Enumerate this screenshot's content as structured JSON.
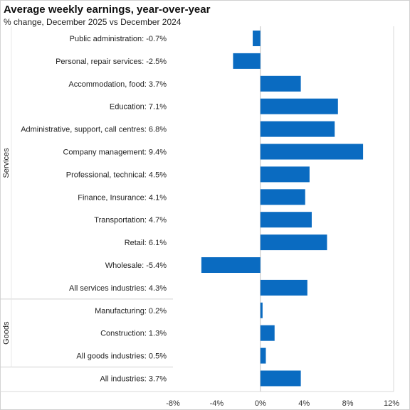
{
  "chart_data": {
    "type": "bar",
    "orientation": "horizontal",
    "title": "Average weekly earnings, year-over-year",
    "subtitle": "% change, December  2025 vs December  2024",
    "categories": [
      "Public administration:",
      "Personal, repair services:",
      "Accommodation, food:",
      "Education:",
      "Administrative, support, call centres:",
      "Company management:",
      "Professional, technical:",
      "Finance, Insurance:",
      "Transportation:",
      "Retail:",
      "Wholesale:",
      "All services industries:",
      "Manufacturing:",
      "Construction:",
      "All goods industries:",
      "All industries:"
    ],
    "values": [
      -0.7,
      -2.5,
      3.7,
      7.1,
      6.8,
      9.4,
      4.5,
      4.1,
      4.7,
      6.1,
      -5.4,
      4.3,
      0.2,
      1.3,
      0.5,
      3.7
    ],
    "value_labels": [
      "-0.7%",
      "-2.5%",
      "3.7%",
      "7.1%",
      "6.8%",
      "9.4%",
      "4.5%",
      "4.1%",
      "4.7%",
      "6.1%",
      "-5.4%",
      "4.3%",
      "0.2%",
      "1.3%",
      "0.5%",
      "3.7%"
    ],
    "groups": [
      {
        "name": "Services",
        "first": 0,
        "last": 11
      },
      {
        "name": "Goods",
        "first": 12,
        "last": 14
      },
      {
        "name": "",
        "first": 15,
        "last": 15
      }
    ],
    "xlim": [
      -8,
      12
    ],
    "xticks": [
      -8,
      -4,
      0,
      4,
      8,
      12
    ],
    "xtick_labels": [
      "-8%",
      "-4%",
      "0%",
      "4%",
      "8%",
      "12%"
    ],
    "xlabel": "",
    "ylabel": "",
    "grid": false,
    "legend": "none",
    "bar_color": "#0a6bc1"
  }
}
